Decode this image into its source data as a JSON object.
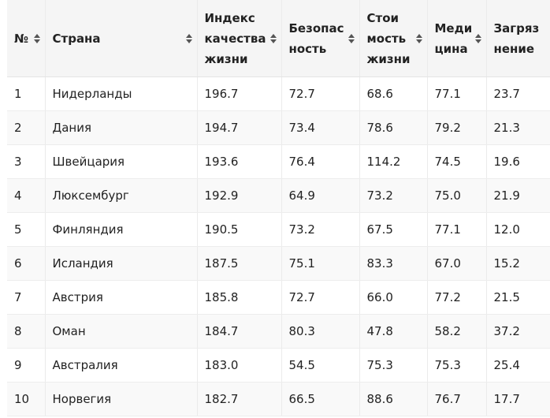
{
  "table": {
    "columns": [
      {
        "label": "№"
      },
      {
        "label": "Страна"
      },
      {
        "label": "Индекс качества жизни"
      },
      {
        "label": "Безопас ность"
      },
      {
        "label": "Стои мость жизни"
      },
      {
        "label": "Меди цина"
      },
      {
        "label": "Загряз нение"
      }
    ],
    "rows": [
      [
        "1",
        "Нидерланды",
        "196.7",
        "72.7",
        "68.6",
        "77.1",
        "23.7"
      ],
      [
        "2",
        "Дания",
        "194.7",
        "73.4",
        "78.6",
        "79.2",
        "21.3"
      ],
      [
        "3",
        "Швейцария",
        "193.6",
        "76.4",
        "114.2",
        "74.5",
        "19.6"
      ],
      [
        "4",
        "Люксембург",
        "192.9",
        "64.9",
        "73.2",
        "75.0",
        "21.9"
      ],
      [
        "5",
        "Финляндия",
        "190.5",
        "73.2",
        "67.5",
        "77.1",
        "12.0"
      ],
      [
        "6",
        "Исландия",
        "187.5",
        "75.1",
        "83.3",
        "67.0",
        "15.2"
      ],
      [
        "7",
        "Австрия",
        "185.8",
        "72.7",
        "66.0",
        "77.2",
        "21.5"
      ],
      [
        "8",
        "Оман",
        "184.7",
        "80.3",
        "47.8",
        "58.2",
        "37.2"
      ],
      [
        "9",
        "Австралия",
        "183.0",
        "54.5",
        "75.3",
        "75.3",
        "25.4"
      ],
      [
        "10",
        "Норвегия",
        "182.7",
        "66.5",
        "88.6",
        "76.7",
        "17.7"
      ]
    ]
  },
  "icons": {
    "sort": "sort-arrows-icon"
  },
  "colors": {
    "header_bg": "#f5f5f5",
    "row_alt_bg": "#f9f9f9",
    "border": "#ebebeb",
    "text": "#222222"
  }
}
